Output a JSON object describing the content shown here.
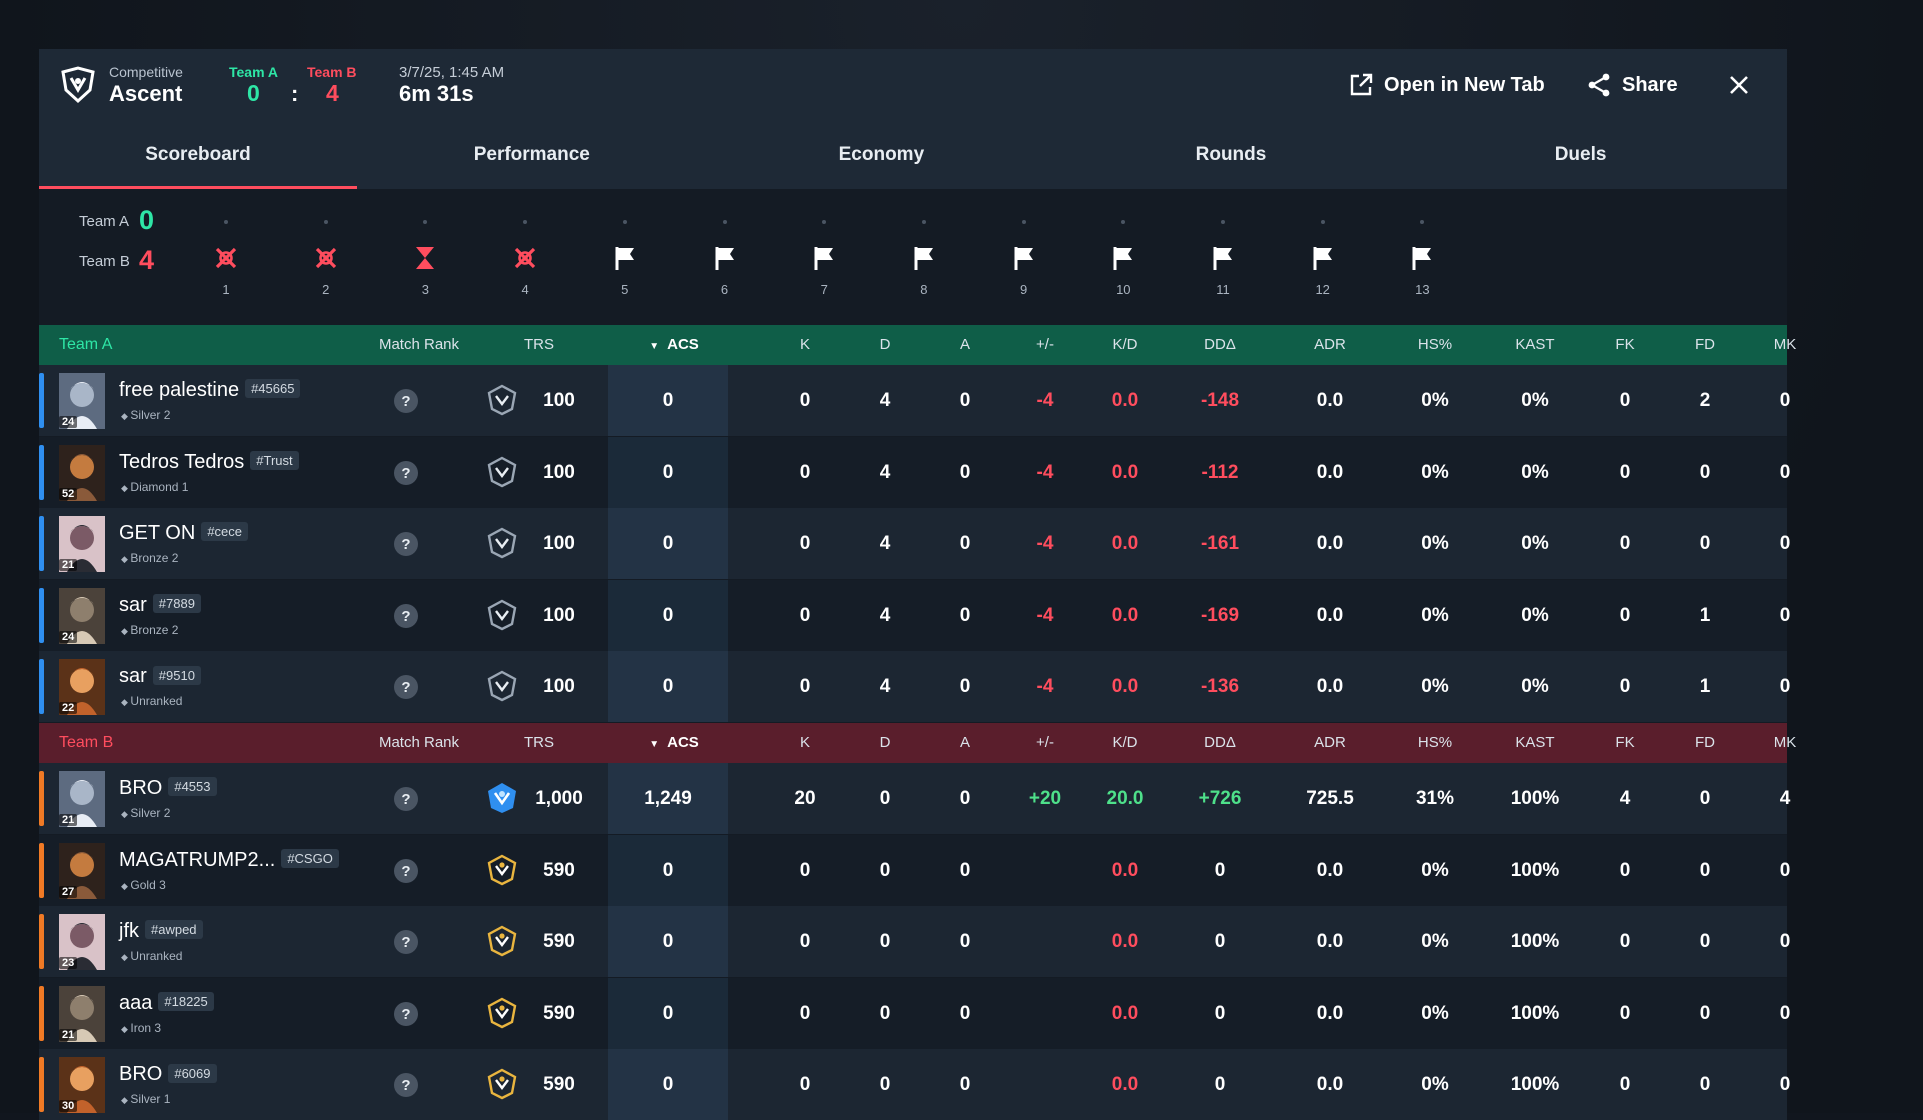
{
  "header": {
    "mode": "Competitive",
    "map": "Ascent",
    "team_a_label": "Team A",
    "team_b_label": "Team B",
    "team_a_score": "0",
    "team_b_score": "4",
    "separator": ":",
    "date": "3/7/25, 1:45 AM",
    "duration": "6m 31s",
    "open_new_tab": "Open in New Tab",
    "share": "Share"
  },
  "tabs": [
    "Scoreboard",
    "Performance",
    "Economy",
    "Rounds",
    "Duels"
  ],
  "active_tab": "Scoreboard",
  "timeline": {
    "team_a_label": "Team A",
    "team_a_score": "0",
    "team_b_label": "Team B",
    "team_b_score": "4",
    "rounds": [
      {
        "num": "1",
        "icon": "elimination-icon"
      },
      {
        "num": "2",
        "icon": "elimination-icon"
      },
      {
        "num": "3",
        "icon": "hourglass-icon"
      },
      {
        "num": "4",
        "icon": "elimination-icon"
      },
      {
        "num": "5",
        "icon": "flag-icon"
      },
      {
        "num": "6",
        "icon": "flag-icon"
      },
      {
        "num": "7",
        "icon": "flag-icon"
      },
      {
        "num": "8",
        "icon": "flag-icon"
      },
      {
        "num": "9",
        "icon": "flag-icon"
      },
      {
        "num": "10",
        "icon": "flag-icon"
      },
      {
        "num": "11",
        "icon": "flag-icon"
      },
      {
        "num": "12",
        "icon": "flag-icon"
      },
      {
        "num": "13",
        "icon": "flag-icon"
      }
    ]
  },
  "columns": [
    "Match Rank",
    "TRS",
    "ACS",
    "K",
    "D",
    "A",
    "+/-",
    "K/D",
    "DDΔ",
    "ADR",
    "HS%",
    "KAST",
    "FK",
    "FD",
    "MK"
  ],
  "team_a": {
    "name": "Team A",
    "players": [
      {
        "name": "free palestine",
        "tag": "#45665",
        "rank": "Silver 2",
        "level": "24",
        "trs": "100",
        "acs": "0",
        "k": "0",
        "d": "4",
        "a": "0",
        "pm": "-4",
        "kd": "0.0",
        "dd": "-148",
        "adr": "0.0",
        "hs": "0%",
        "kast": "0%",
        "fk": "0",
        "fd": "2",
        "mk": "0"
      },
      {
        "name": "Tedros Tedros",
        "tag": "#Trust",
        "rank": "Diamond 1",
        "level": "52",
        "trs": "100",
        "acs": "0",
        "k": "0",
        "d": "4",
        "a": "0",
        "pm": "-4",
        "kd": "0.0",
        "dd": "-112",
        "adr": "0.0",
        "hs": "0%",
        "kast": "0%",
        "fk": "0",
        "fd": "0",
        "mk": "0"
      },
      {
        "name": "GET ON",
        "tag": "#cece",
        "rank": "Bronze 2",
        "level": "21",
        "trs": "100",
        "acs": "0",
        "k": "0",
        "d": "4",
        "a": "0",
        "pm": "-4",
        "kd": "0.0",
        "dd": "-161",
        "adr": "0.0",
        "hs": "0%",
        "kast": "0%",
        "fk": "0",
        "fd": "0",
        "mk": "0"
      },
      {
        "name": "sar",
        "tag": "#7889",
        "rank": "Bronze 2",
        "level": "24",
        "trs": "100",
        "acs": "0",
        "k": "0",
        "d": "4",
        "a": "0",
        "pm": "-4",
        "kd": "0.0",
        "dd": "-169",
        "adr": "0.0",
        "hs": "0%",
        "kast": "0%",
        "fk": "0",
        "fd": "1",
        "mk": "0"
      },
      {
        "name": "sar",
        "tag": "#9510",
        "rank": "Unranked",
        "level": "22",
        "trs": "100",
        "acs": "0",
        "k": "0",
        "d": "4",
        "a": "0",
        "pm": "-4",
        "kd": "0.0",
        "dd": "-136",
        "adr": "0.0",
        "hs": "0%",
        "kast": "0%",
        "fk": "0",
        "fd": "1",
        "mk": "0"
      }
    ]
  },
  "team_b": {
    "name": "Team B",
    "players": [
      {
        "name": "BRO",
        "tag": "#4553",
        "rank": "Silver 2",
        "level": "21",
        "trs": "1,000",
        "acs": "1,249",
        "k": "20",
        "d": "0",
        "a": "0",
        "pm": "+20",
        "kd": "20.0",
        "dd": "+726",
        "adr": "725.5",
        "hs": "31%",
        "kast": "100%",
        "fk": "4",
        "fd": "0",
        "mk": "4"
      },
      {
        "name": "MAGATRUMP2...",
        "tag": "#CSGO",
        "rank": "Gold 3",
        "level": "27",
        "trs": "590",
        "acs": "0",
        "k": "0",
        "d": "0",
        "a": "0",
        "pm": "",
        "kd": "0.0",
        "dd": "0",
        "adr": "0.0",
        "hs": "0%",
        "kast": "100%",
        "fk": "0",
        "fd": "0",
        "mk": "0"
      },
      {
        "name": "jfk",
        "tag": "#awped",
        "rank": "Unranked",
        "level": "23",
        "trs": "590",
        "acs": "0",
        "k": "0",
        "d": "0",
        "a": "0",
        "pm": "",
        "kd": "0.0",
        "dd": "0",
        "adr": "0.0",
        "hs": "0%",
        "kast": "100%",
        "fk": "0",
        "fd": "0",
        "mk": "0"
      },
      {
        "name": "aaa",
        "tag": "#18225",
        "rank": "Iron 3",
        "level": "21",
        "trs": "590",
        "acs": "0",
        "k": "0",
        "d": "0",
        "a": "0",
        "pm": "",
        "kd": "0.0",
        "dd": "0",
        "adr": "0.0",
        "hs": "0%",
        "kast": "100%",
        "fk": "0",
        "fd": "0",
        "mk": "0"
      },
      {
        "name": "BRO",
        "tag": "#6069",
        "rank": "Silver 1",
        "level": "30",
        "trs": "590",
        "acs": "0",
        "k": "0",
        "d": "0",
        "a": "0",
        "pm": "",
        "kd": "0.0",
        "dd": "0",
        "adr": "0.0",
        "hs": "0%",
        "kast": "100%",
        "fk": "0",
        "fd": "0",
        "mk": "0"
      }
    ]
  },
  "colors": {
    "team_a": "#2ee6a6",
    "team_b": "#ff4d5e",
    "accent_blue": "#2f8ff0",
    "accent_orange": "#f07a25",
    "positive": "#4ee08a",
    "negative": "#ff4d5e"
  }
}
